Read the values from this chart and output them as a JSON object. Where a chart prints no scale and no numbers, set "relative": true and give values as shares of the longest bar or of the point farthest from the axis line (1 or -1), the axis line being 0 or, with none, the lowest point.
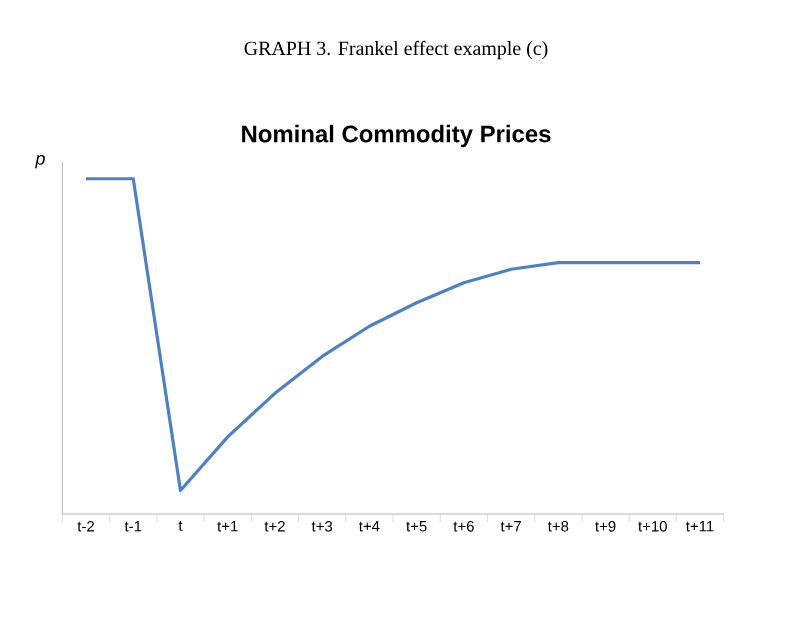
{
  "chart_data": {
    "type": "line",
    "relative": true,
    "title": "Nominal Commodity Prices",
    "ylabel": "p",
    "annotations": [
      "GRAPH 3. Frankel effect example (c)"
    ],
    "categories": [
      "t-2",
      "t-1",
      "t",
      "t+1",
      "t+2",
      "t+3",
      "t+4",
      "t+5",
      "t+6",
      "t+7",
      "t+8",
      "t+9",
      "t+10",
      "t+11"
    ],
    "values": [
      1,
      1,
      0.07,
      0.23,
      0.36,
      0.47,
      0.56,
      0.63,
      0.69,
      0.73,
      0.75,
      0.75,
      0.75,
      0.75
    ],
    "color": "#4f81bd",
    "marker": "none",
    "line_style": "solid"
  }
}
